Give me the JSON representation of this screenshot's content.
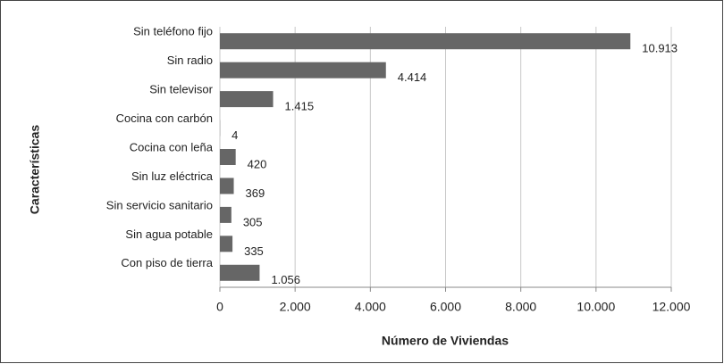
{
  "chart_data": {
    "type": "bar",
    "orientation": "horizontal",
    "categories": [
      "Sin teléfono fijo",
      "Sin radio",
      "Sin televisor",
      "Cocina con carbón",
      "Cocina con leña",
      "Sin luz eléctrica",
      "Sin servicio sanitario",
      "Sin agua potable",
      "Con piso de tierra"
    ],
    "values": [
      10913,
      4414,
      1415,
      4,
      420,
      369,
      305,
      335,
      1056
    ],
    "value_labels": [
      "10.913",
      "4.414",
      "1.415",
      "4",
      "420",
      "369",
      "305",
      "335",
      "1.056"
    ],
    "color": "#666666",
    "xlabel": "Número de Viviendas",
    "ylabel": "Características",
    "xlim": [
      0,
      12000
    ],
    "xticks": [
      0,
      {
        "value": 2000,
        "label": "2.000"
      },
      {
        "value": 4000,
        "label": "4.000"
      },
      {
        "value": 6000,
        "label": "6.000"
      },
      {
        "value": 8000,
        "label": "8.000"
      },
      {
        "value": 10000,
        "label": "10.000"
      },
      {
        "value": 12000,
        "label": "12.000"
      }
    ],
    "grid": true
  }
}
